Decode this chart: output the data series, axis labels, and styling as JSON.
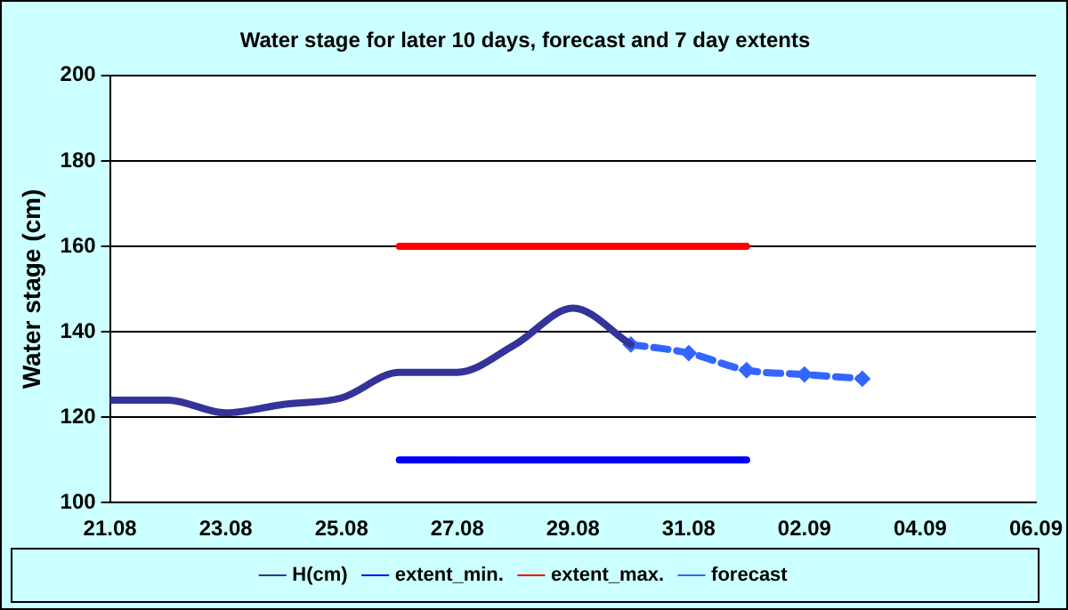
{
  "chart_data": {
    "type": "line",
    "title": "Water stage for later 10 days, forecast and 7 day extents",
    "ylabel": "Water stage (cm)",
    "xlim": [
      "--08-21",
      "--09-06"
    ],
    "xticks": [
      {
        "value": "--08-21",
        "label": "21.08"
      },
      {
        "value": "--08-23",
        "label": "23.08"
      },
      {
        "value": "--08-25",
        "label": "25.08"
      },
      {
        "value": "--08-27",
        "label": "27.08"
      },
      {
        "value": "--08-29",
        "label": "29.08"
      },
      {
        "value": "--08-31",
        "label": "31.08"
      },
      {
        "value": "--09-02",
        "label": "02.09"
      },
      {
        "value": "--09-04",
        "label": "04.09"
      },
      {
        "value": "--09-06",
        "label": "06.09"
      }
    ],
    "ylim": [
      100,
      200
    ],
    "yticks": [
      100,
      120,
      140,
      160,
      180,
      200
    ],
    "grid": "y",
    "legend": "bottom",
    "series": [
      {
        "name": "H(cm)",
        "color": "#333399",
        "marker": "none",
        "line_style": "solid",
        "x": [
          "--08-21",
          "--08-22",
          "--08-23",
          "--08-24",
          "--08-25",
          "--08-26",
          "--08-27",
          "--08-28",
          "--08-29",
          "--08-30"
        ],
        "values": [
          124,
          124,
          121,
          123,
          124.5,
          130.5,
          130.5,
          137,
          145.5,
          137
        ]
      },
      {
        "name": "extent_min.",
        "color": "#0000ff",
        "marker": "none",
        "line_style": "solid",
        "x": [
          "--08-26",
          "--09-01"
        ],
        "values": [
          110,
          110
        ]
      },
      {
        "name": "extent_max.",
        "color": "#ff0000",
        "marker": "none",
        "line_style": "solid",
        "x": [
          "--08-26",
          "--09-01"
        ],
        "values": [
          160,
          160
        ]
      },
      {
        "name": "forecast",
        "color": "#3366ff",
        "marker": "diamond",
        "line_style": "dashed",
        "x": [
          "--08-30",
          "--08-31",
          "--09-01",
          "--09-02",
          "--09-03"
        ],
        "values": [
          137,
          135,
          131,
          130,
          129
        ]
      }
    ]
  }
}
